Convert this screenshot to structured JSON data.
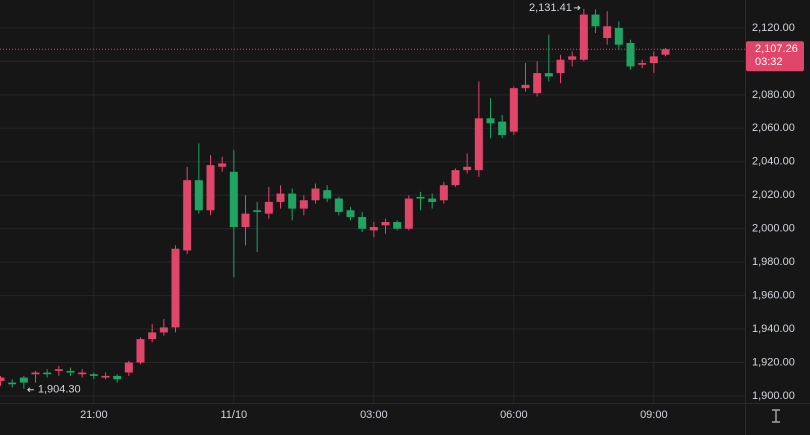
{
  "chart_data": {
    "type": "candlestick",
    "categories": [
      null,
      null,
      null,
      null,
      null,
      null,
      null,
      null,
      "21:00",
      null,
      null,
      null,
      null,
      null,
      null,
      null,
      null,
      null,
      null,
      null,
      "11/10",
      null,
      null,
      null,
      null,
      null,
      null,
      null,
      null,
      null,
      null,
      null,
      "03:00",
      null,
      null,
      null,
      null,
      null,
      null,
      null,
      null,
      null,
      null,
      null,
      "06:00",
      null,
      null,
      null,
      null,
      null,
      null,
      null,
      null,
      null,
      null,
      null,
      "09:00",
      null
    ],
    "open": [
      1909,
      1908,
      1911,
      1913,
      1914,
      1915,
      1915,
      1913,
      1913,
      1911,
      1912,
      1914,
      1920,
      1934,
      1938,
      1941,
      1987,
      2029,
      2011,
      2037,
      2034,
      2001,
      2011,
      2009,
      2016,
      2021,
      2012,
      2017,
      2023,
      2018,
      2011,
      2007,
      1999,
      2002,
      2004,
      2000,
      2019,
      2018,
      2017,
      2026,
      2035,
      2035,
      2066,
      2064,
      2058,
      2084,
      2081,
      2093,
      2093,
      2101,
      2101,
      2128,
      2114,
      2120,
      2111,
      2098,
      2099,
      2104
    ],
    "high": [
      1912,
      1910,
      1912,
      1915,
      1916,
      1918,
      1917,
      1916,
      1914,
      1914,
      1913,
      1921,
      1935,
      1943,
      1946,
      1990,
      2037,
      2051,
      2044,
      2043,
      2047,
      2020,
      2016,
      2025,
      2026,
      2024,
      2020,
      2027,
      2026,
      2019,
      2013,
      2010,
      2004,
      2006,
      2005,
      2020,
      2022,
      2021,
      2028,
      2036,
      2045,
      2088,
      2078,
      2068,
      2085,
      2099,
      2100,
      2116,
      2104,
      2106,
      2131.41,
      2131,
      2130,
      2124,
      2113,
      2101,
      2106,
      2108
    ],
    "low": [
      1906,
      1905,
      1904.3,
      1908,
      1911,
      1912,
      1912,
      1911,
      1910,
      1910,
      1908,
      1912,
      1919,
      1932,
      1936,
      1938,
      1985,
      2009,
      2008,
      2034,
      1971,
      1990,
      1986,
      2006,
      2012,
      2005,
      2008,
      2015,
      2016,
      2008,
      2005,
      1998,
      1995,
      1997,
      1999,
      1999,
      2011,
      2012,
      2015,
      2025,
      2033,
      2031,
      2054,
      2054,
      2056,
      2082,
      2079,
      2088,
      2087,
      2097,
      2100,
      2117,
      2110,
      2107,
      2095,
      2096,
      2093,
      2103
    ],
    "close": [
      1911,
      1907,
      1908,
      1914,
      1913,
      1916,
      1914,
      1914,
      1912,
      1912,
      1910,
      1920,
      1934,
      1938,
      1941,
      1988,
      2029,
      2011,
      2038,
      2039,
      2001,
      2009,
      2010,
      2016,
      2021,
      2012,
      2017,
      2024,
      2018,
      2010,
      2007,
      2000,
      2001,
      2004,
      2000,
      2018,
      2018,
      2016,
      2026,
      2035,
      2037,
      2066,
      2063,
      2056,
      2084,
      2086,
      2093,
      2091,
      2101,
      2103,
      2128,
      2121,
      2121,
      2110,
      2097,
      2099,
      2103,
      2107.26
    ],
    "up_color": "#e0456a",
    "down_color": "#1fa463",
    "ylim": [
      1895.8,
      2136.7
    ],
    "yticks": [
      {
        "value": 1900,
        "label": "1,900.00"
      },
      {
        "value": 1920,
        "label": "1,920.00"
      },
      {
        "value": 1940,
        "label": "1,940.00"
      },
      {
        "value": 1960,
        "label": "1,960.00"
      },
      {
        "value": 1980,
        "label": "1,980.00"
      },
      {
        "value": 2000,
        "label": "2,000.00"
      },
      {
        "value": 2020,
        "label": "2,020.00"
      },
      {
        "value": 2040,
        "label": "2,040.00"
      },
      {
        "value": 2060,
        "label": "2,060.00"
      },
      {
        "value": 2080,
        "label": "2,080.00"
      },
      {
        "value": 2100,
        "label": "2,100.00"
      },
      {
        "value": 2120,
        "label": "2,120.00"
      }
    ],
    "grid": true,
    "last_price": {
      "value": 2107.26,
      "label": "2,107.26"
    },
    "countdown": "03:32",
    "high_marker": {
      "value": 2131.41,
      "label": "2,131.41"
    },
    "low_marker": {
      "value": 1904.3,
      "label": "1,904.30"
    }
  }
}
